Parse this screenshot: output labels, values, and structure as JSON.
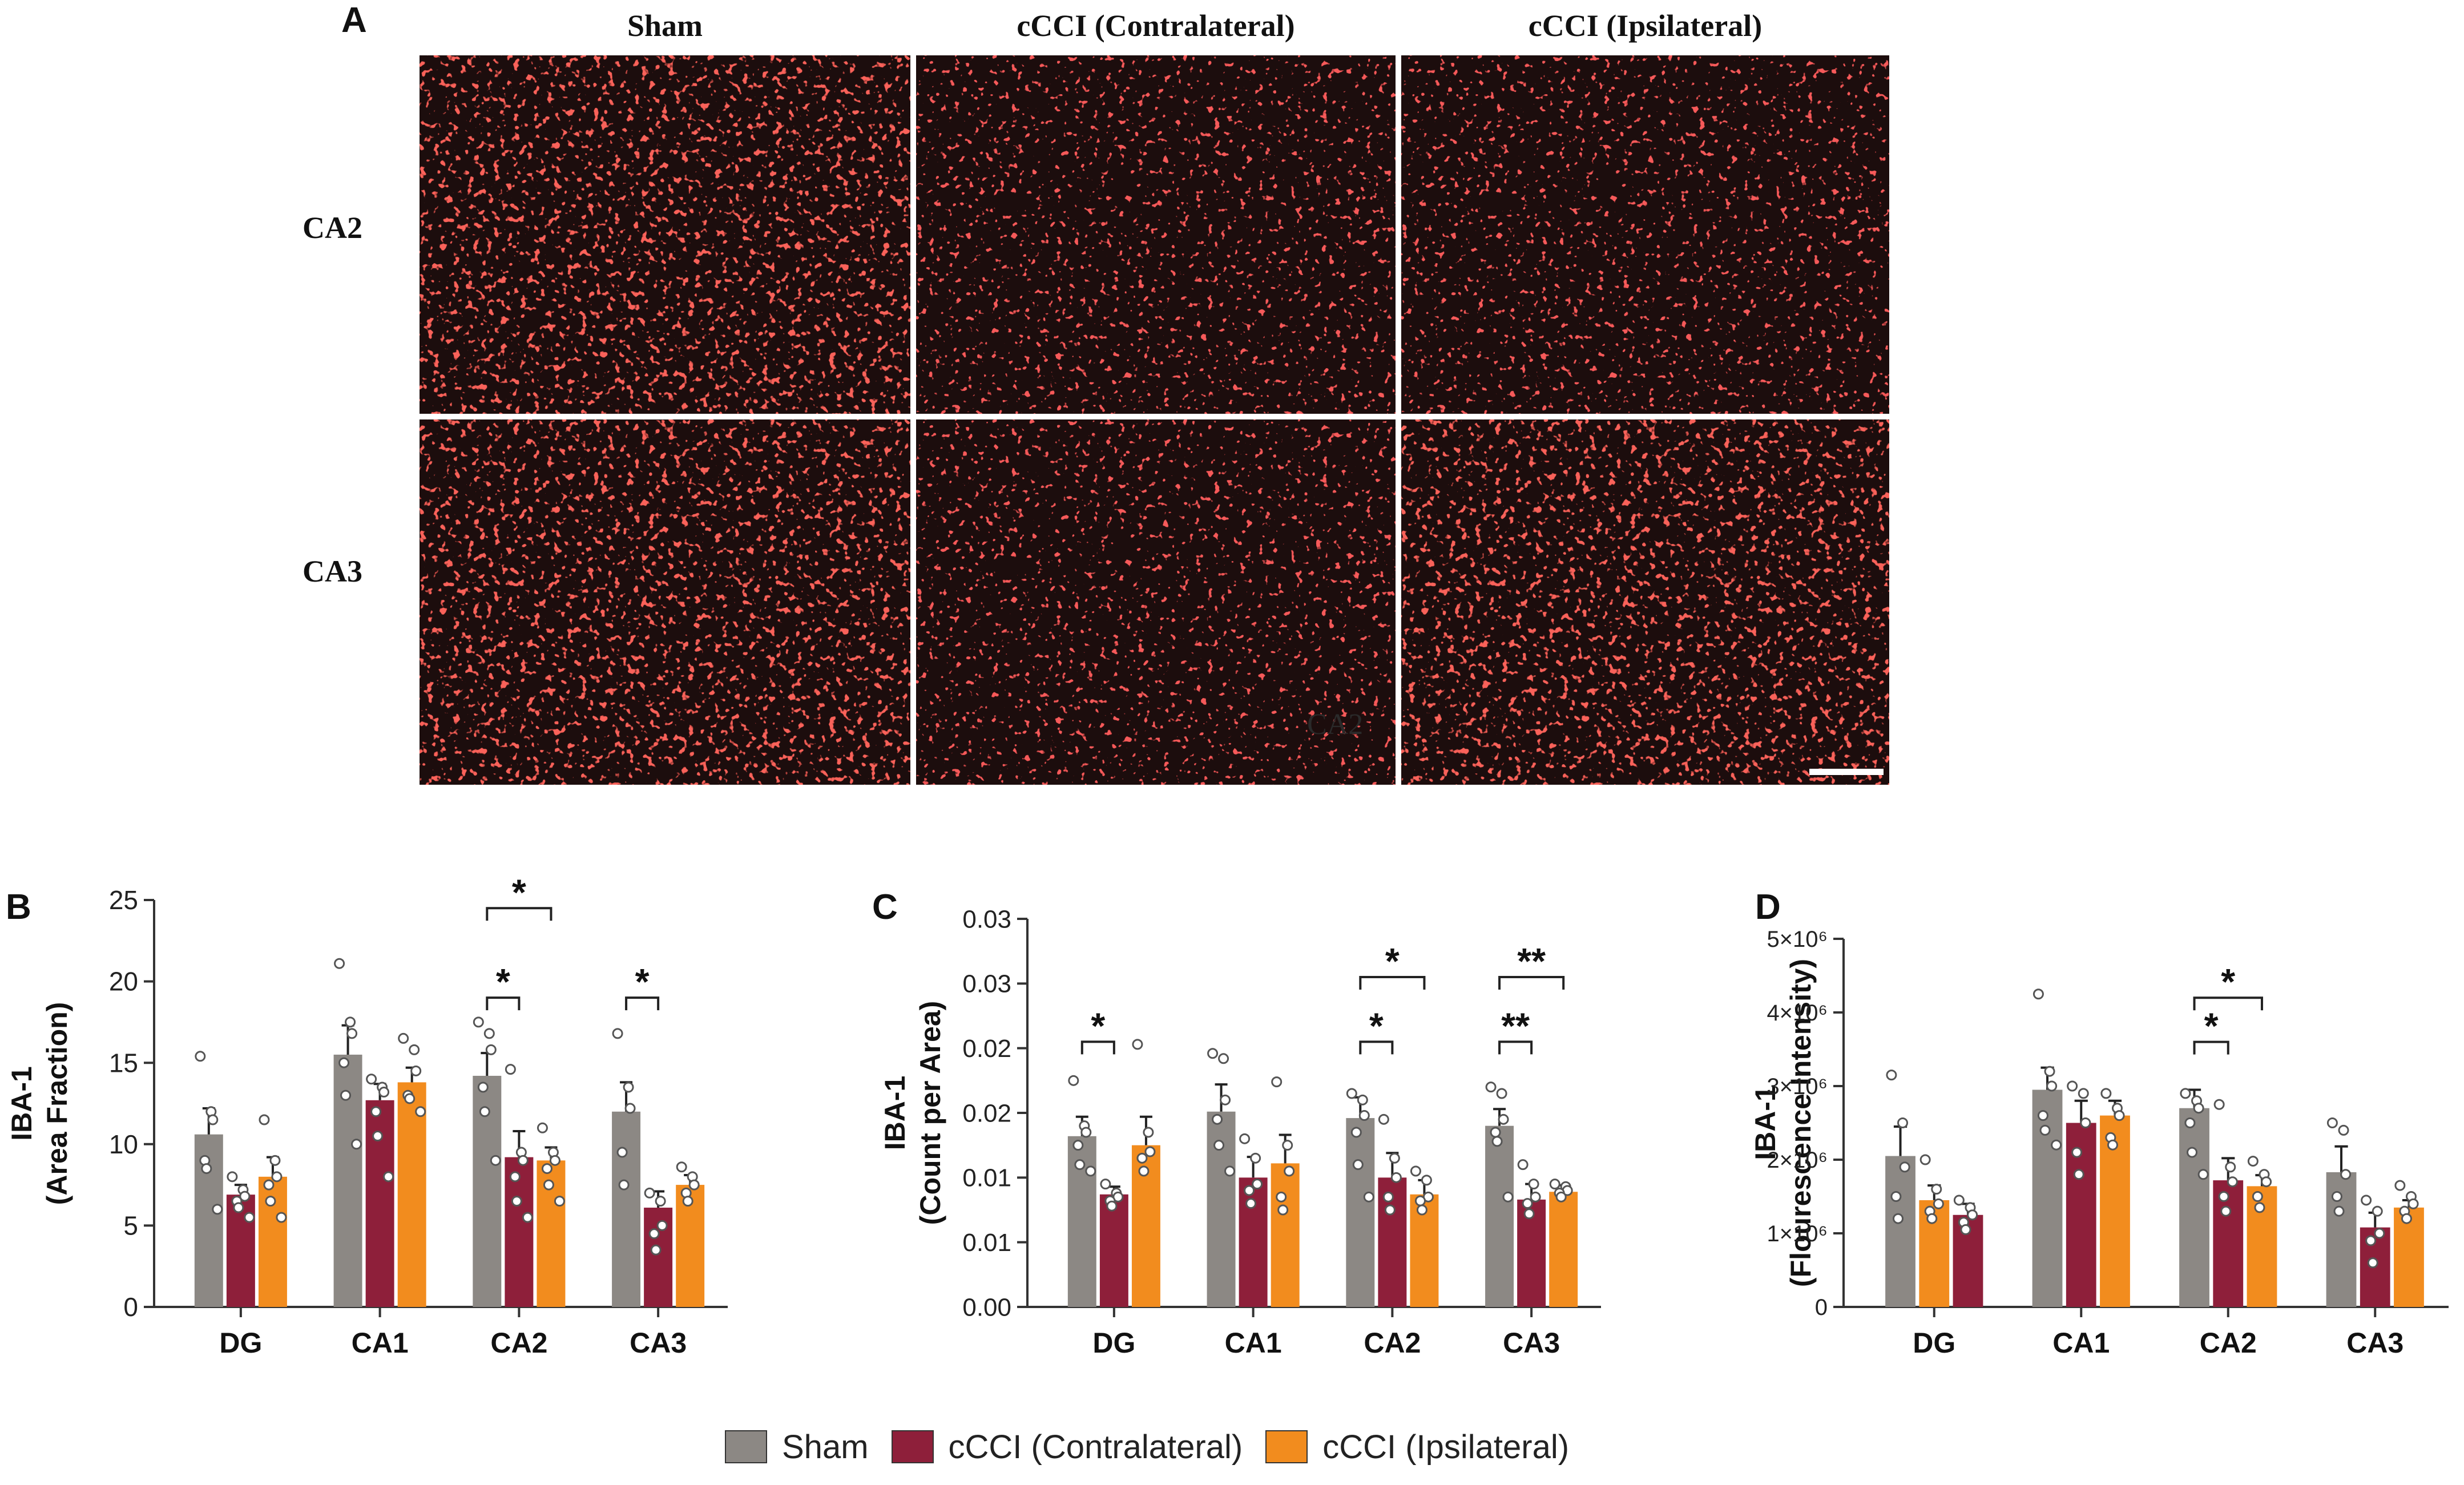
{
  "figure": {
    "panel_a": {
      "letter": "A",
      "column_headers": [
        "Sham",
        "cCCI (Contralateral)",
        "cCCI (Ipsilateral)"
      ],
      "row_headers": [
        "CA2",
        "CA3"
      ],
      "image_overlay_label": "CA2"
    },
    "legend": [
      {
        "label": "Sham",
        "color": "#8c8884"
      },
      {
        "label": "cCCI (Contralateral)",
        "color": "#8e1f3a"
      },
      {
        "label": "cCCI (Ipsilateral)",
        "color": "#f28c1e"
      }
    ]
  },
  "chart_data": [
    {
      "panel": "B",
      "type": "bar",
      "ylabel_line1": "IBA-1",
      "ylabel_line2": "(Area Fraction)",
      "categories": [
        "DG",
        "CA1",
        "CA2",
        "CA3"
      ],
      "ylim": [
        0,
        25
      ],
      "yticks": [
        0,
        5,
        10,
        15,
        20,
        25
      ],
      "ytick_labels": [
        "0",
        "5",
        "10",
        "15",
        "20",
        "25"
      ],
      "series_order": [
        "Sham",
        "cCCI (Contralateral)",
        "cCCI (Ipsilateral)"
      ],
      "series": [
        {
          "name": "Sham",
          "values": [
            10.6,
            15.5,
            14.2,
            12.0
          ],
          "errors": [
            1.6,
            1.8,
            1.4,
            1.8
          ]
        },
        {
          "name": "cCCI (Contralateral)",
          "values": [
            6.9,
            12.7,
            9.2,
            6.1
          ],
          "errors": [
            0.6,
            1.0,
            1.6,
            1.0
          ]
        },
        {
          "name": "cCCI (Ipsilateral)",
          "values": [
            8.0,
            13.8,
            9.0,
            7.5
          ],
          "errors": [
            1.2,
            0.9,
            0.8,
            0.6
          ]
        }
      ],
      "points": [
        [
          [
            15.4,
            12.0,
            11.5,
            9.0,
            8.5,
            6.0
          ],
          [
            21.1,
            17.5,
            16.8,
            15.0,
            13.0,
            10.0
          ],
          [
            17.5,
            16.8,
            15.8,
            13.5,
            12.0,
            9.0
          ],
          [
            16.8,
            13.5,
            12.2,
            9.5,
            7.5
          ]
        ],
        [
          [
            8.0,
            7.2,
            6.8,
            6.5,
            6.1,
            5.5
          ],
          [
            14.0,
            13.5,
            13.2,
            12.0,
            10.5,
            8.0
          ],
          [
            14.6,
            9.5,
            9.0,
            8.0,
            6.5,
            5.5
          ],
          [
            7.0,
            6.5,
            5.0,
            4.5,
            3.5
          ]
        ],
        [
          [
            11.5,
            9.0,
            8.0,
            7.5,
            6.5,
            5.5
          ],
          [
            16.5,
            15.8,
            14.5,
            13.0,
            12.8,
            12.0
          ],
          [
            11.0,
            9.5,
            9.0,
            8.5,
            7.5,
            6.5
          ],
          [
            8.6,
            8.0,
            7.5,
            7.0,
            6.5
          ]
        ]
      ],
      "brackets": [
        {
          "from_series": 0,
          "to_series": 2,
          "category": 2,
          "level": 24.5,
          "label": "*"
        },
        {
          "from_series": 0,
          "to_series": 1,
          "category": 2,
          "level": 19.0,
          "label": "*"
        },
        {
          "from_series": 0,
          "to_series": 1,
          "category": 3,
          "level": 19.0,
          "label": "*"
        }
      ]
    },
    {
      "panel": "C",
      "type": "bar",
      "ylabel_line1": "IBA-1",
      "ylabel_line2": "(Count per Area)",
      "categories": [
        "DG",
        "CA1",
        "CA2",
        "CA3"
      ],
      "ylim": [
        0,
        0.03
      ],
      "yticks": [
        0,
        0.005,
        0.01,
        0.015,
        0.02,
        0.025,
        0.03
      ],
      "ytick_labels": [
        "0.00",
        "0.01",
        "0.01",
        "0.02",
        "0.02",
        "0.03",
        "0.03"
      ],
      "series_order": [
        "Sham",
        "cCCI (Contralateral)",
        "cCCI (Ipsilateral)"
      ],
      "series": [
        {
          "name": "Sham",
          "values": [
            0.0132,
            0.0151,
            0.0146,
            0.014
          ],
          "errors": [
            0.0015,
            0.0021,
            0.0016,
            0.0013
          ]
        },
        {
          "name": "cCCI (Contralateral)",
          "values": [
            0.0087,
            0.01,
            0.01,
            0.0083
          ],
          "errors": [
            0.0006,
            0.0016,
            0.0019,
            0.0012
          ]
        },
        {
          "name": "cCCI (Ipsilateral)",
          "values": [
            0.0125,
            0.0111,
            0.0087,
            0.0089
          ],
          "errors": [
            0.0022,
            0.0022,
            0.0011,
            0.0005
          ]
        }
      ],
      "points": [
        [
          [
            0.0175,
            0.014,
            0.0135,
            0.0125,
            0.011,
            0.0105
          ],
          [
            0.0196,
            0.0192,
            0.016,
            0.0145,
            0.0125,
            0.0105
          ],
          [
            0.0165,
            0.016,
            0.0148,
            0.0135,
            0.011,
            0.0085
          ],
          [
            0.017,
            0.0165,
            0.0145,
            0.0135,
            0.0128,
            0.0085
          ]
        ],
        [
          [
            0.0095,
            0.0088,
            0.0085,
            0.0082,
            0.0078
          ],
          [
            0.013,
            0.0115,
            0.0095,
            0.009,
            0.008
          ],
          [
            0.0145,
            0.0115,
            0.01,
            0.0085,
            0.0075
          ],
          [
            0.011,
            0.0095,
            0.0085,
            0.008,
            0.0072
          ]
        ],
        [
          [
            0.0203,
            0.0135,
            0.012,
            0.0115,
            0.0105
          ],
          [
            0.0174,
            0.0125,
            0.0105,
            0.0085,
            0.0075
          ],
          [
            0.0105,
            0.0098,
            0.0085,
            0.0082,
            0.0075
          ],
          [
            0.0095,
            0.0093,
            0.009,
            0.0088,
            0.0085
          ]
        ]
      ],
      "brackets": [
        {
          "from_series": 0,
          "to_series": 1,
          "category": 0,
          "level": 0.0205,
          "label": "*"
        },
        {
          "from_series": 0,
          "to_series": 2,
          "category": 2,
          "level": 0.0255,
          "label": "*"
        },
        {
          "from_series": 0,
          "to_series": 1,
          "category": 2,
          "level": 0.0205,
          "label": "*"
        },
        {
          "from_series": 0,
          "to_series": 2,
          "category": 3,
          "level": 0.0255,
          "label": "**"
        },
        {
          "from_series": 0,
          "to_series": 1,
          "category": 3,
          "level": 0.0205,
          "label": "**"
        }
      ]
    },
    {
      "panel": "D",
      "type": "bar",
      "ylabel_line1": "IBA-1",
      "ylabel_line2": "(Flourescence Intensity)",
      "categories": [
        "DG",
        "CA1",
        "CA2",
        "CA3"
      ],
      "ylim": [
        0,
        5000000
      ],
      "yticks": [
        0,
        1000000,
        2000000,
        3000000,
        4000000,
        5000000
      ],
      "ytick_labels": [
        "0",
        "1×10⁶",
        "2×10⁶",
        "3×10⁶",
        "4×10⁶",
        "5×10⁶"
      ],
      "series_order": [
        "Sham",
        "cCCI (Contralateral)",
        "cCCI (Ipsilateral)"
      ],
      "bar_colors": [
        "#8c8884",
        "#f28c1e",
        "#8e1f3a",
        "#8c8884",
        "#8e1f3a",
        "#f28c1e",
        "#8c8884",
        "#8e1f3a",
        "#f28c1e",
        "#8c8884",
        "#8e1f3a",
        "#f28c1e"
      ],
      "series": [
        {
          "name": "Sham",
          "values": [
            2050000,
            2950000,
            2700000,
            1830000
          ],
          "errors": [
            400000,
            300000,
            250000,
            350000
          ]
        },
        {
          "name": "cCCI (Contralateral)",
          "values": [
            1450000,
            2500000,
            1720000,
            1080000
          ],
          "errors": [
            200000,
            300000,
            300000,
            200000
          ]
        },
        {
          "name": "cCCI (Ipsilateral)",
          "values": [
            1250000,
            2600000,
            1640000,
            1350000
          ],
          "errors": [
            150000,
            200000,
            150000,
            100000
          ]
        }
      ],
      "points": [
        [
          [
            3150000,
            2500000,
            1900000,
            1500000,
            1200000
          ],
          [
            4250000,
            3200000,
            3000000,
            2600000,
            2400000,
            2200000
          ],
          [
            2900000,
            2800000,
            2700000,
            2500000,
            2100000,
            1800000
          ],
          [
            2500000,
            2400000,
            1800000,
            1500000,
            1300000
          ]
        ],
        [
          [
            2000000,
            1600000,
            1400000,
            1300000,
            1200000
          ],
          [
            3000000,
            2900000,
            2500000,
            2100000,
            1800000
          ],
          [
            2750000,
            1900000,
            1700000,
            1500000,
            1300000
          ],
          [
            1450000,
            1300000,
            1000000,
            900000,
            600000
          ]
        ],
        [
          [
            1450000,
            1350000,
            1250000,
            1150000,
            1050000
          ],
          [
            2900000,
            2700000,
            2600000,
            2300000,
            2200000
          ],
          [
            1980000,
            1800000,
            1700000,
            1500000,
            1350000
          ],
          [
            1650000,
            1500000,
            1400000,
            1300000,
            1200000
          ]
        ]
      ],
      "brackets": [
        {
          "from_series": 0,
          "to_series": 2,
          "category": 2,
          "level": 4200000,
          "label": "*"
        },
        {
          "from_series": 0,
          "to_series": 1,
          "category": 2,
          "level": 3600000,
          "label": "*"
        }
      ]
    }
  ]
}
